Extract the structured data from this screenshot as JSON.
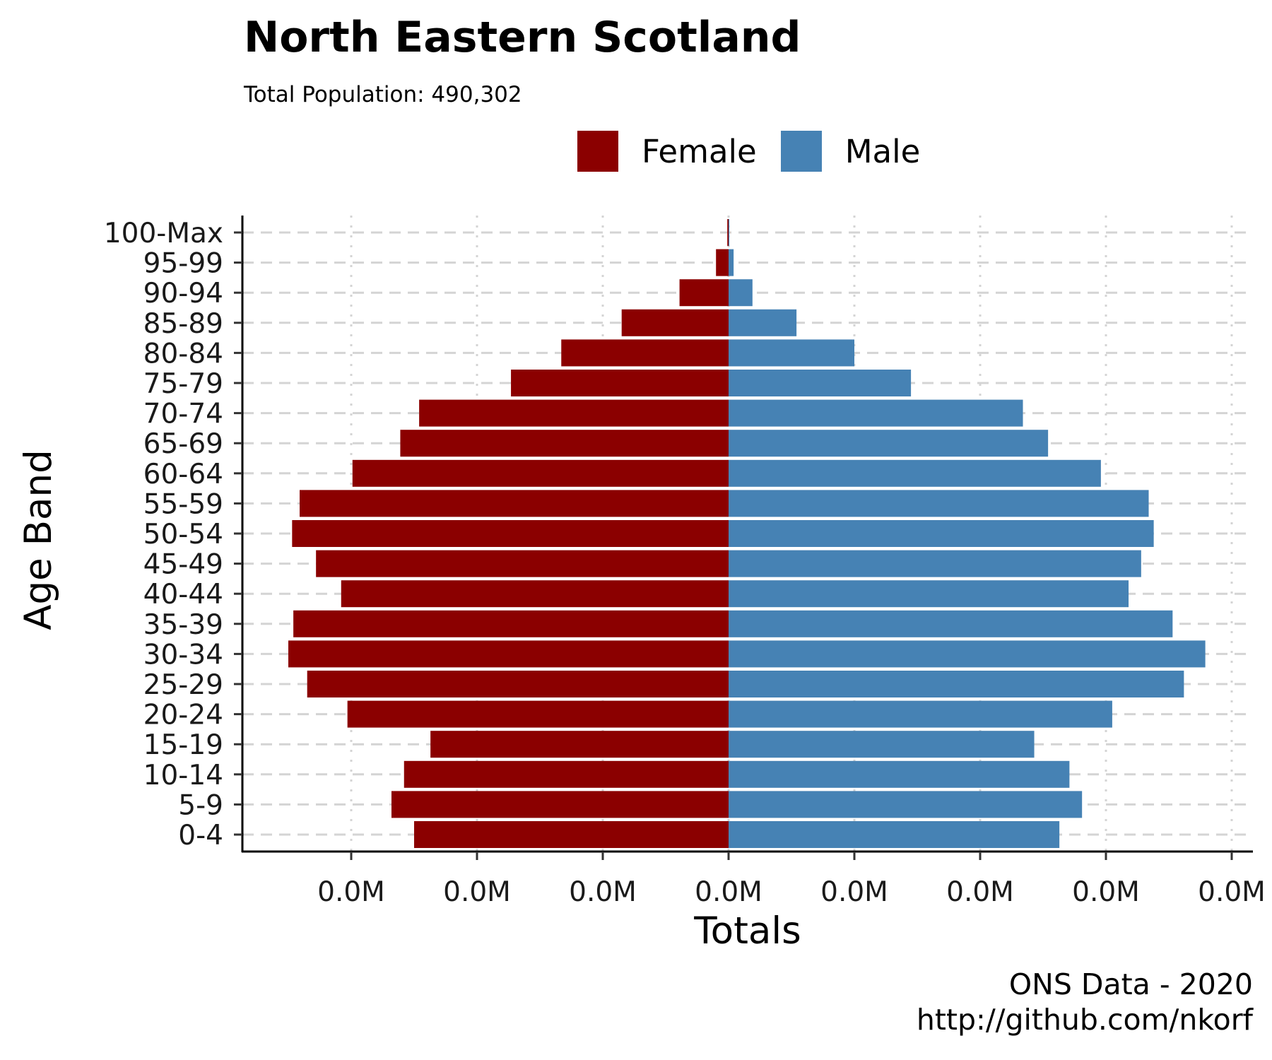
{
  "title": "North Eastern Scotland",
  "subtitle": "Total Population:  490,302",
  "caption": {
    "line1": "ONS Data - 2020",
    "line2": "http://github.com/nkorf"
  },
  "legend": [
    {
      "label": "Female",
      "color": "#8B0000"
    },
    {
      "label": "Male",
      "color": "#4682B4"
    }
  ],
  "chart_data": {
    "type": "bar",
    "orientation": "horizontal",
    "layout": "population-pyramid",
    "title": "North Eastern Scotland",
    "subtitle": "Total Population:  490,302",
    "xlabel": "Totals",
    "ylabel": "Age Band",
    "categories": [
      "0-4",
      "5-9",
      "10-14",
      "15-19",
      "20-24",
      "25-29",
      "30-34",
      "35-39",
      "40-44",
      "45-49",
      "50-54",
      "55-59",
      "60-64",
      "65-69",
      "70-74",
      "75-79",
      "80-84",
      "85-89",
      "90-94",
      "95-99",
      "100-Max"
    ],
    "series": [
      {
        "name": "Female",
        "color": "#8B0000",
        "direction": "left",
        "values": [
          12500,
          13400,
          12900,
          11850,
          15150,
          16750,
          17500,
          17300,
          15400,
          16400,
          17350,
          17050,
          14950,
          13050,
          12300,
          8650,
          6650,
          4250,
          1950,
          500,
          50
        ]
      },
      {
        "name": "Male",
        "color": "#4682B4",
        "direction": "right",
        "values": [
          13150,
          14050,
          13550,
          12150,
          15250,
          18100,
          18950,
          17650,
          15900,
          16400,
          16900,
          16700,
          14800,
          12700,
          11700,
          7250,
          5000,
          2700,
          950,
          200,
          30
        ]
      }
    ],
    "xticks": [
      -15000,
      -10000,
      -5000,
      0,
      5000,
      10000,
      15000,
      20000
    ],
    "xtick_labels": [
      "0.0M",
      "0.0M",
      "0.0M",
      "0.0M",
      "0.0M",
      "0.0M",
      "0.0M",
      "0.0M"
    ],
    "xlim": [
      -19300,
      20800
    ],
    "grid": {
      "x": "dotted",
      "y": "dashed"
    },
    "legend_position": "top"
  }
}
